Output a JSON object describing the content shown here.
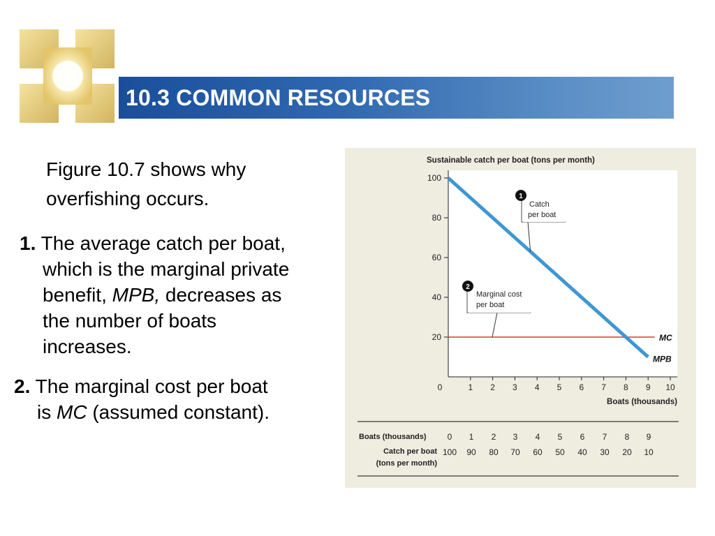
{
  "slide": {
    "title": "10.3 COMMON RESOURCES",
    "intro_line1": "Figure 10.7 shows why",
    "intro_line2": "overfishing occurs.",
    "point1": {
      "number": "1.",
      "line1": "The average catch per boat,",
      "line2": "which is the marginal private",
      "line3_a": "benefit,",
      "line3_em": "MPB,",
      "line3_b": "decreases as",
      "line4": "the number of boats",
      "line5": "increases."
    },
    "point2": {
      "number": "2.",
      "line1": "The marginal cost per boat",
      "line2_a": "is",
      "line2_em": "MC",
      "line2_b": "(assumed constant)."
    }
  },
  "colors": {
    "title_bar_start": "#1a4e9b",
    "title_bar_end": "#6f9dcf",
    "figure_background": "#efece0",
    "mpb_line": "#3e97d4",
    "mc_line": "#d63a2c"
  },
  "chart_data": {
    "type": "line",
    "title": "Sustainable catch per boat (tons per month)",
    "xlabel": "Boats  (thousands)",
    "xlim": [
      0,
      10
    ],
    "ylim": [
      0,
      100
    ],
    "x_ticks": [
      "0",
      "1",
      "2",
      "3",
      "4",
      "5",
      "6",
      "7",
      "8",
      "9",
      "10"
    ],
    "y_ticks": [
      "20",
      "40",
      "60",
      "80",
      "100"
    ],
    "series": [
      {
        "name": "MPB",
        "x": [
          0,
          9
        ],
        "y": [
          100,
          10
        ]
      },
      {
        "name": "MC",
        "x": [
          0,
          9.3
        ],
        "y": [
          20,
          20
        ]
      }
    ],
    "annotations": [
      {
        "number": "1",
        "line1": "Catch",
        "line2": "per boat"
      },
      {
        "number": "2",
        "line1": "Marginal cost",
        "line2": "per boat"
      }
    ],
    "table": {
      "row1_header": "Boats (thousands)",
      "row2_header_line1": "Catch per boat",
      "row2_header_line2": "(tons per month)",
      "boats": [
        "0",
        "1",
        "2",
        "3",
        "4",
        "5",
        "6",
        "7",
        "8",
        "9"
      ],
      "catch": [
        "100",
        "90",
        "80",
        "70",
        "60",
        "50",
        "40",
        "30",
        "20",
        "10"
      ]
    }
  }
}
